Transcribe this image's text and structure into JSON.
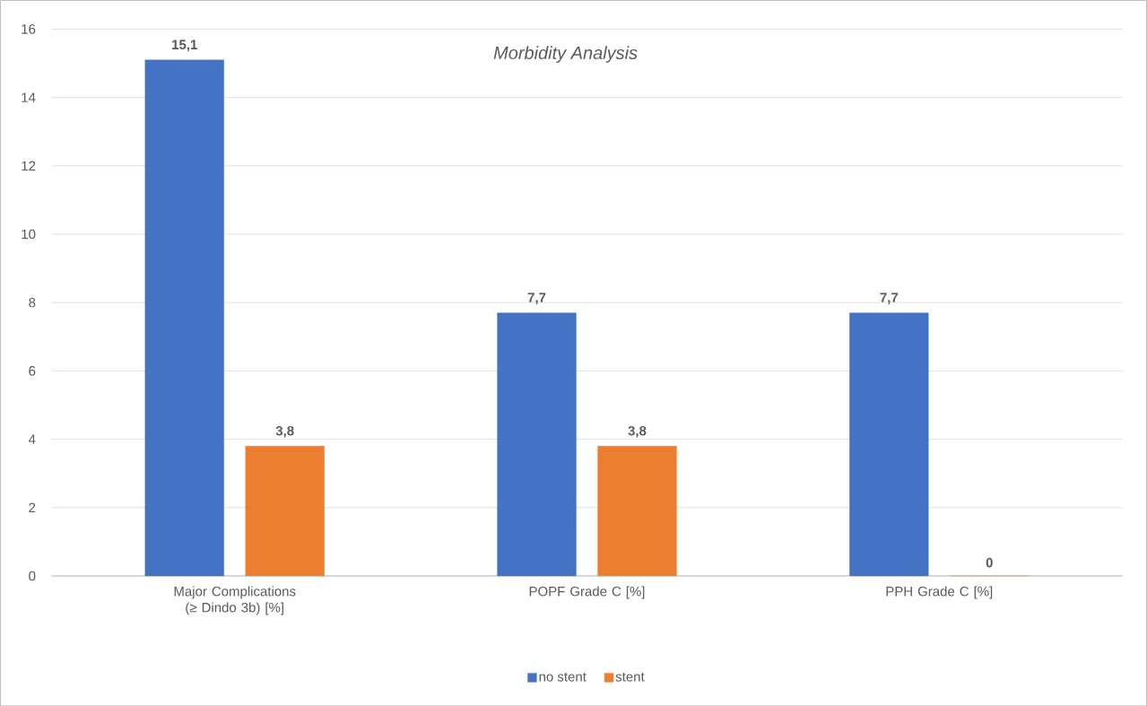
{
  "chart_data": {
    "type": "bar",
    "title": "Morbidity Analysis",
    "categories": [
      "Major Complications  (≥ Dindo 3b) [%]",
      "POPF Grade C [%]",
      "PPH Grade C [%]"
    ],
    "series": [
      {
        "name": "no stent",
        "color": "#4472c4",
        "values": [
          15.1,
          7.7,
          7.7
        ],
        "value_labels": [
          "15,1",
          "7,7",
          "7,7"
        ]
      },
      {
        "name": "stent",
        "color": "#ed7d31",
        "values": [
          3.8,
          3.8,
          0
        ],
        "value_labels": [
          "3,8",
          "3,8",
          "0"
        ]
      }
    ],
    "ylim": [
      0,
      16
    ],
    "yticks": [
      0,
      2,
      4,
      6,
      8,
      10,
      12,
      14,
      16
    ],
    "grid": "y",
    "legend": "bottom"
  }
}
